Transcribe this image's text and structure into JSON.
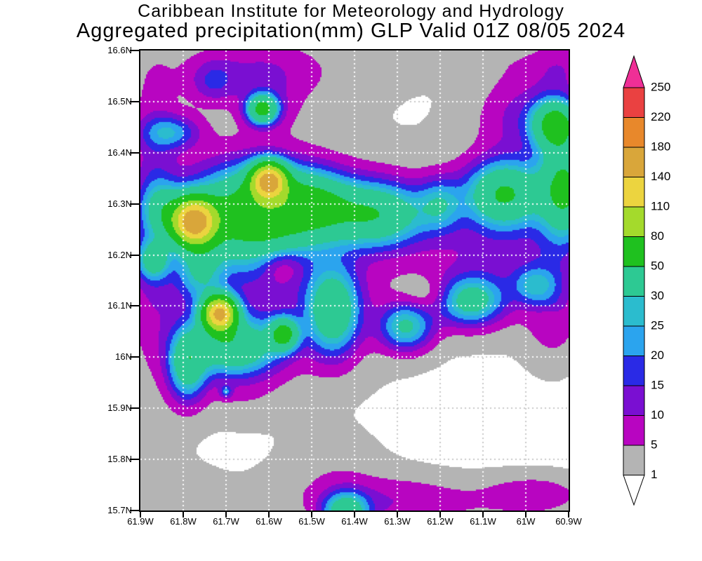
{
  "title": {
    "line1": "Caribbean Institute for Meteorology and Hydrology",
    "line2": "Aggregated precipitation(mm) GLP Valid 01Z 08/05 2024"
  },
  "colors": {
    "axis": "#000000",
    "background": "#ffffff",
    "grid_dot_on_color": "#ffffff",
    "grid_dot_on_white": "#c9c9c9"
  },
  "chart_data": {
    "type": "heatmap",
    "title": "Aggregated precipitation(mm) GLP Valid 01Z 08/05 2024",
    "units": "mm",
    "lon_range_degW": [
      61.9,
      60.9
    ],
    "lat_range_degN": [
      15.7,
      16.6
    ],
    "grid_step_deg": 0.1,
    "lat_tick_labels": [
      "16.6N",
      "16.5N",
      "16.4N",
      "16.3N",
      "16.2N",
      "16.1N",
      "16N",
      "15.9N",
      "15.8N",
      "15.7N"
    ],
    "lon_tick_labels": [
      "61.9W",
      "61.8W",
      "61.7W",
      "61.6W",
      "61.5W",
      "61.4W",
      "61.3W",
      "61.2W",
      "61.1W",
      "61W",
      "60.9W"
    ],
    "levels": [
      1,
      5,
      10,
      15,
      20,
      25,
      30,
      50,
      80,
      110,
      140,
      180,
      220,
      250
    ],
    "below_color": "#ffffff",
    "palette": [
      "#b4b4b4",
      "#b805c1",
      "#7a0fd2",
      "#2a2ae6",
      "#2ba4ee",
      "#2bbcce",
      "#2dc993",
      "#1fc11f",
      "#a4da2c",
      "#ecd43f",
      "#d9a63a",
      "#e8882b",
      "#ea4141",
      "#ef2f96"
    ],
    "colorbar": {
      "labels": [
        "250",
        "220",
        "180",
        "140",
        "110",
        "80",
        "50",
        "30",
        "25",
        "20",
        "15",
        "10",
        "5",
        "1"
      ],
      "segment_colors_top_to_bottom": [
        "#ea4141",
        "#e8882b",
        "#d9a63a",
        "#ecd43f",
        "#a4da2c",
        "#1fc11f",
        "#2dc993",
        "#2bbcce",
        "#2ba4ee",
        "#2a2ae6",
        "#7a0fd2",
        "#b805c1",
        "#b4b4b4"
      ],
      "over_color": "#ef2f96",
      "under_color": "#ffffff"
    },
    "field_bumps": [
      [
        61.62,
        16.56,
        3.2,
        0.3,
        0.075
      ],
      [
        61.05,
        16.585,
        2.6,
        0.2,
        0.04
      ],
      [
        61.85,
        16.2,
        3.0,
        0.09,
        0.38
      ],
      [
        61.6,
        16.17,
        3.2,
        0.3,
        0.24
      ],
      [
        61.02,
        16.28,
        3.0,
        0.22,
        0.22
      ],
      [
        61.42,
        15.74,
        2.6,
        0.22,
        0.06
      ],
      [
        61.8,
        15.73,
        2.6,
        0.1,
        0.05
      ],
      [
        61.66,
        15.92,
        2.4,
        0.09,
        0.045
      ],
      [
        60.93,
        16.07,
        2.6,
        0.06,
        0.08
      ],
      [
        61.45,
        15.8,
        2.4,
        0.1,
        0.06
      ],
      [
        61.87,
        16.3,
        9,
        0.05,
        0.22
      ],
      [
        61.73,
        16.54,
        11,
        0.05,
        0.04
      ],
      [
        61.62,
        16.56,
        7,
        0.13,
        0.055
      ],
      [
        61.0,
        16.47,
        11,
        0.1,
        0.08
      ],
      [
        60.92,
        16.56,
        7,
        0.06,
        0.05
      ],
      [
        61.6,
        16.2,
        8,
        0.25,
        0.18
      ],
      [
        61.07,
        16.2,
        8,
        0.18,
        0.1
      ],
      [
        61.3,
        15.715,
        8,
        0.2,
        0.045
      ],
      [
        60.98,
        15.73,
        8,
        0.12,
        0.04
      ],
      [
        60.94,
        16.12,
        7,
        0.06,
        0.1
      ],
      [
        61.6,
        16.49,
        6,
        0.07,
        0.05
      ],
      [
        61.83,
        16.44,
        20,
        0.065,
        0.032
      ],
      [
        61.87,
        16.19,
        28,
        0.035,
        0.035
      ],
      [
        61.85,
        16.29,
        22,
        0.045,
        0.05
      ],
      [
        60.98,
        16.14,
        18,
        0.05,
        0.035
      ],
      [
        61.7,
        15.932,
        15,
        0.014,
        0.012
      ],
      [
        61.775,
        16.265,
        150,
        0.048,
        0.042
      ],
      [
        61.6,
        16.345,
        135,
        0.038,
        0.032
      ],
      [
        61.715,
        16.085,
        140,
        0.036,
        0.032
      ],
      [
        61.64,
        16.28,
        58,
        0.13,
        0.085
      ],
      [
        61.5,
        16.3,
        40,
        0.09,
        0.06
      ],
      [
        61.35,
        16.28,
        44,
        0.11,
        0.06
      ],
      [
        61.2,
        16.3,
        20,
        0.05,
        0.05
      ],
      [
        61.05,
        16.32,
        48,
        0.085,
        0.06
      ],
      [
        60.91,
        16.33,
        52,
        0.055,
        0.09
      ],
      [
        60.93,
        16.455,
        55,
        0.05,
        0.045
      ],
      [
        61.615,
        16.485,
        52,
        0.034,
        0.027
      ],
      [
        61.68,
        16.02,
        42,
        0.1,
        0.055
      ],
      [
        61.565,
        16.045,
        50,
        0.032,
        0.03
      ],
      [
        61.45,
        16.09,
        40,
        0.06,
        0.08
      ],
      [
        61.79,
        15.985,
        36,
        0.042,
        0.065
      ],
      [
        61.42,
        15.695,
        40,
        0.05,
        0.038
      ],
      [
        61.13,
        16.11,
        34,
        0.075,
        0.045
      ],
      [
        61.28,
        16.06,
        30,
        0.06,
        0.045
      ],
      [
        61.76,
        16.17,
        22,
        0.05,
        0.06
      ],
      [
        61.57,
        16.18,
        -12,
        0.05,
        0.035
      ],
      [
        61.22,
        16.12,
        -7,
        0.07,
        0.035
      ],
      [
        60.945,
        16.08,
        -4,
        0.035,
        0.015
      ]
    ]
  }
}
